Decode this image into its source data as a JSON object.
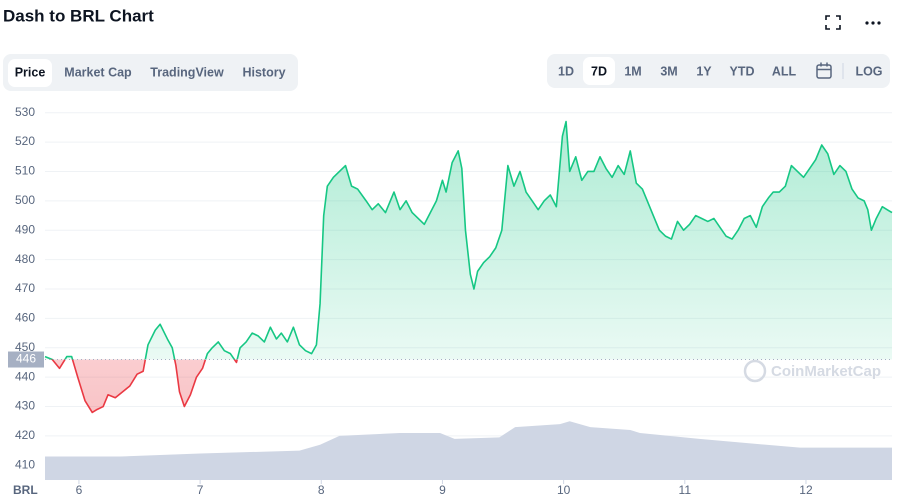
{
  "chart_data": {
    "type": "line",
    "title": "Dash to BRL Chart",
    "tabs": [
      "Price",
      "Market Cap",
      "TradingView",
      "History"
    ],
    "active_tab": 0,
    "ranges": [
      "1D",
      "7D",
      "1M",
      "3M",
      "1Y",
      "YTD",
      "ALL"
    ],
    "active_range": 1,
    "log_toggle": "LOG",
    "currency_label": "BRL",
    "watermark": "CoinMarketCap",
    "baseline": 446,
    "up_color": "#16c784",
    "down_color": "#ea3943",
    "x": [
      5.72,
      5.78,
      5.84,
      5.9,
      5.94,
      5.99,
      6.05,
      6.11,
      6.15,
      6.2,
      6.24,
      6.3,
      6.36,
      6.42,
      6.48,
      6.53,
      6.57,
      6.63,
      6.67,
      6.73,
      6.77,
      6.8,
      6.83,
      6.87,
      6.92,
      6.97,
      7.02,
      7.06,
      7.1,
      7.15,
      7.2,
      7.25,
      7.3,
      7.33,
      7.38,
      7.43,
      7.48,
      7.53,
      7.58,
      7.63,
      7.67,
      7.72,
      7.77,
      7.82,
      7.87,
      7.92,
      7.96,
      7.99,
      8.02,
      8.05,
      8.1,
      8.15,
      8.2,
      8.25,
      8.3,
      8.37,
      8.42,
      8.47,
      8.53,
      8.6,
      8.65,
      8.7,
      8.75,
      8.8,
      8.85,
      8.9,
      8.95,
      9.0,
      9.03,
      9.08,
      9.13,
      9.16,
      9.19,
      9.23,
      9.26,
      9.29,
      9.34,
      9.39,
      9.44,
      9.49,
      9.54,
      9.59,
      9.64,
      9.69,
      9.74,
      9.79,
      9.84,
      9.89,
      9.94,
      9.99,
      10.02,
      10.05,
      10.1,
      10.15,
      10.2,
      10.25,
      10.3,
      10.35,
      10.4,
      10.45,
      10.5,
      10.55,
      10.6,
      10.65,
      10.69,
      10.74,
      10.79,
      10.84,
      10.89,
      10.94,
      10.99,
      11.04,
      11.09,
      11.14,
      11.19,
      11.24,
      11.29,
      11.34,
      11.39,
      11.44,
      11.49,
      11.54,
      11.59,
      11.64,
      11.69,
      11.73,
      11.78,
      11.83,
      11.88,
      11.93,
      11.98,
      12.03,
      12.08,
      12.13,
      12.18,
      12.23,
      12.28,
      12.33,
      12.38,
      12.43,
      12.48,
      12.51,
      12.54,
      12.58,
      12.63,
      12.67,
      12.71
    ],
    "series": [
      {
        "values": [
          447,
          446,
          443,
          447,
          447,
          440,
          432,
          428,
          429,
          430,
          434,
          433,
          435,
          437,
          441,
          442,
          451,
          456,
          458,
          453,
          450,
          444,
          435,
          430,
          434,
          440,
          443,
          448,
          450,
          452,
          449,
          448,
          445,
          450,
          452,
          455,
          454,
          452,
          457,
          453,
          455,
          452,
          457,
          451,
          449,
          448,
          451,
          465,
          495,
          505,
          508,
          510,
          512,
          505,
          504,
          500,
          497,
          499,
          496,
          503,
          497,
          500,
          496,
          494,
          492,
          496,
          500,
          507,
          503,
          513,
          517,
          511,
          490,
          475,
          470,
          476,
          479,
          481,
          484,
          490,
          512,
          505,
          510,
          503,
          500,
          497,
          500,
          502,
          498,
          522,
          527,
          510,
          515,
          507,
          510,
          510,
          515,
          511,
          508,
          512,
          509,
          517,
          506,
          504,
          500,
          495,
          490,
          488,
          487,
          493,
          490,
          492,
          495,
          494,
          493,
          494,
          491,
          488,
          487,
          490,
          494,
          495,
          491,
          498,
          501,
          503,
          503,
          505,
          512,
          510,
          508,
          511,
          514,
          519,
          516,
          509,
          512,
          510,
          504,
          501,
          500,
          497,
          490,
          494,
          498,
          497,
          496
        ]
      }
    ],
    "volume": {
      "color": "#cfd6e4",
      "x": [
        5.72,
        6.34,
        7.0,
        7.82,
        7.99,
        8.15,
        8.65,
        8.98,
        9.1,
        9.47,
        9.6,
        9.97,
        10.05,
        10.22,
        10.55,
        10.63,
        11.12,
        11.95,
        12.71
      ],
      "values": [
        413,
        413,
        414,
        415,
        417,
        420,
        421,
        421,
        419,
        419.5,
        423,
        424,
        425,
        423,
        422,
        421,
        419,
        416,
        416
      ]
    },
    "xlim": [
      5.72,
      12.71
    ],
    "ylim": [
      405,
      535
    ],
    "xticks": [
      6,
      7,
      8,
      9,
      10,
      11,
      12
    ],
    "yticks": [
      410,
      420,
      430,
      440,
      450,
      460,
      470,
      480,
      490,
      500,
      510,
      520,
      530
    ],
    "grid": true
  }
}
